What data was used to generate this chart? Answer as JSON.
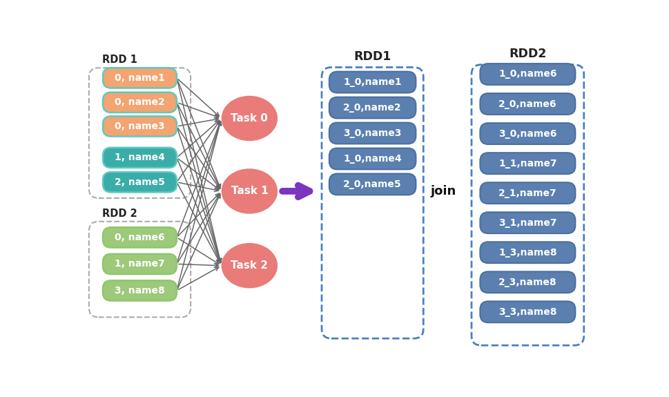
{
  "rdd1_label": "RDD 1",
  "rdd2_label": "RDD 2",
  "rdd1_items": [
    "0, name1",
    "0, name2",
    "0, name3",
    "1, name4",
    "2, name5"
  ],
  "rdd2_items": [
    "0, name6",
    "1, name7",
    "3, name8"
  ],
  "task_labels": [
    "Task 0",
    "Task 1",
    "Task 2"
  ],
  "rdd1_out_label": "RDD1",
  "rdd2_out_label": "RDD2",
  "rdd1_out_items": [
    "1_0,name1",
    "2_0,name2",
    "3_0,name3",
    "1_0,name4",
    "2_0,name5"
  ],
  "rdd2_out_items": [
    "1_0,name6",
    "2_0,name6",
    "3_0,name6",
    "1_1,name7",
    "2_1,name7",
    "3_1,name7",
    "1_3,name8",
    "2_3,name8",
    "3_3,name8"
  ],
  "join_label": "join",
  "arrow_color": "#7B35BE",
  "rdd1_item_colors": [
    "#F4A470",
    "#F4A470",
    "#F4A470",
    "#3AADA8",
    "#3AADA8"
  ],
  "rdd1_item_border": "#5FC8C2",
  "rdd2_item_colors": [
    "#9DC97A",
    "#9DC97A",
    "#9DC97A"
  ],
  "rdd2_item_border": "#8DC86A",
  "task_color": "#E97B78",
  "out_box_fill": "#5B80B0",
  "out_box_border": "#4A70A5",
  "out_item_fill": "#5B80B0",
  "out_item_border": "#4A6FA0",
  "bg_color": "#ffffff",
  "line_color": "#666666",
  "dashed_border_color_left": "#AAAAAA",
  "dashed_border_color_right": "#4A80C4"
}
